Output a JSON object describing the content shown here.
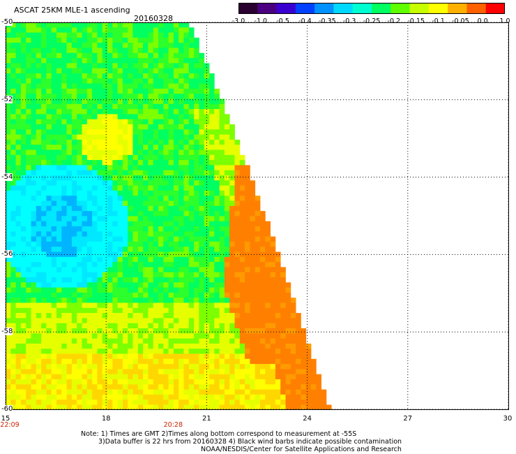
{
  "header": {
    "title": "ASCAT 25KM MLE-1 ascending",
    "date": "20160328"
  },
  "colorbar": {
    "ticks": [
      "-3.0",
      "-1.0",
      "-0.5",
      "-0.4",
      "-0.35",
      "-0.3",
      "-0.25",
      "-0.2",
      "-0.15",
      "-0.1",
      "-0.05",
      "0.0",
      "1.0"
    ],
    "colors": [
      "#2a0030",
      "#4a0080",
      "#3a00d0",
      "#0040ff",
      "#0090ff",
      "#00d8ff",
      "#00ffd0",
      "#00ff60",
      "#60ff00",
      "#c8ff00",
      "#ffff00",
      "#ffb000",
      "#ff6000",
      "#ff0000"
    ]
  },
  "map": {
    "lat_labels": [
      "-50",
      "-52",
      "-54",
      "-56",
      "-58",
      "-60"
    ],
    "lon_labels": [
      "15",
      "18",
      "21",
      "24",
      "27",
      "30"
    ],
    "lat_range": [
      -60,
      -50
    ],
    "lon_range": [
      15,
      30
    ],
    "time_labels": [
      {
        "text": "22:09",
        "lon": 15
      },
      {
        "text": "20:28",
        "lon": 20
      }
    ]
  },
  "notes": {
    "line1": "Note: 1) Times are GMT 2)Times along bottom correspond to measurement at -55S",
    "line2": "3)Data buffer is 22 hrs from 20160328 4) Black wind barbs indicate possible contamination",
    "line3": "NOAA/NESDIS/Center for Satellite Applications and Research"
  }
}
